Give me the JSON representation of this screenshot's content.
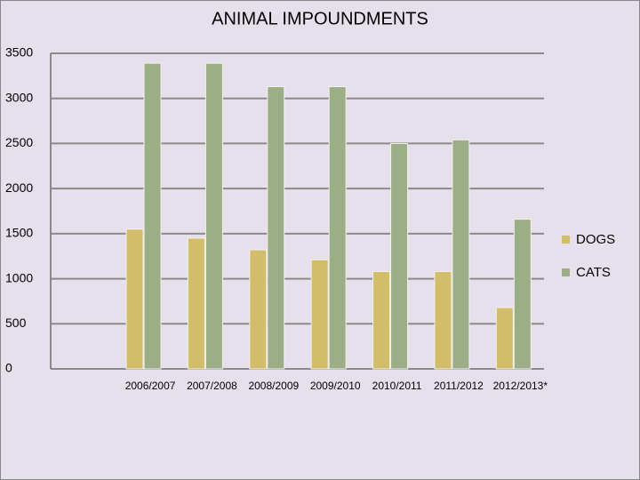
{
  "chart_data": {
    "type": "bar",
    "title": "ANIMAL IMPOUNDMENTS",
    "categories": [
      null,
      "2006/2007",
      "2007/2008",
      "2008/2009",
      "2009/2010",
      "2010/2011",
      "2011/2012",
      "2012/2013*"
    ],
    "series": [
      {
        "name": "DOGS",
        "color": "#d2bd6b",
        "values": [
          null,
          1550,
          1450,
          1320,
          1210,
          1080,
          1080,
          680
        ]
      },
      {
        "name": "CATS",
        "color": "#9cae88",
        "values": [
          null,
          3390,
          3390,
          3130,
          3130,
          2500,
          2540,
          1660
        ]
      }
    ],
    "ylim": [
      0,
      3500
    ],
    "yticks": [
      0,
      500,
      1000,
      1500,
      2000,
      2500,
      3000,
      3500
    ],
    "grid": true,
    "legend": "right"
  }
}
